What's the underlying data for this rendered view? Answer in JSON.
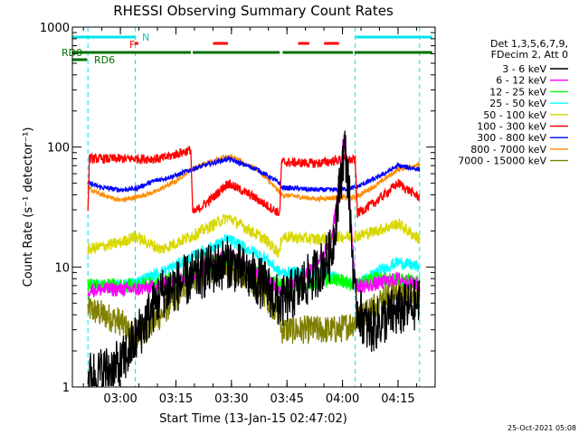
{
  "chart_data": {
    "type": "line",
    "title": "RHESSI Observing Summary Count Rates",
    "xlabel": "Start Time (13-Jan-15 02:47:02)",
    "ylabel": "Count Rate (s⁻¹ detector⁻¹)",
    "yscale": "log",
    "ylim": [
      1,
      1000
    ],
    "xlim_minutes": [
      0,
      98
    ],
    "x_ticks": [
      {
        "t": 12.97,
        "label": "03:00"
      },
      {
        "t": 27.97,
        "label": "03:15"
      },
      {
        "t": 42.97,
        "label": "03:30"
      },
      {
        "t": 57.97,
        "label": "03:45"
      },
      {
        "t": 72.97,
        "label": "04:00"
      },
      {
        "t": 87.97,
        "label": "04:15"
      }
    ],
    "y_ticks": [
      {
        "v": 1,
        "label": "1"
      },
      {
        "v": 10,
        "label": "10"
      },
      {
        "v": 100,
        "label": "100"
      },
      {
        "v": 1000,
        "label": "1000"
      }
    ],
    "legend_header": [
      "Det 1,3,5,6,7,9,",
      "FDecim 2, Att 0"
    ],
    "legend_position": "right",
    "vlines_cyan": [
      4.2,
      17.0,
      76.4,
      93.8
    ],
    "annotations": {
      "N": "N",
      "F": "F",
      "RD0": "RD0",
      "RD6": "RD6"
    },
    "flags": {
      "night": [
        [
          0,
          17.0
        ],
        [
          76.6,
          97.2
        ]
      ],
      "flare": [
        [
          16.8,
          17.8
        ],
        [
          38.0,
          42.0
        ],
        [
          61.0,
          64.0
        ],
        [
          68.0,
          72.0
        ]
      ],
      "rd0": [
        [
          0,
          32.0
        ],
        [
          32.5,
          56.0
        ],
        [
          56.8,
          75.8
        ],
        [
          76.2,
          97.2
        ]
      ],
      "rd6": [
        [
          0,
          4.0
        ]
      ]
    },
    "series": [
      {
        "name": "3 - 6 keV",
        "color": "#000000"
      },
      {
        "name": "6 - 12 keV",
        "color": "#ff00ff"
      },
      {
        "name": "12 - 25 keV",
        "color": "#00ff00"
      },
      {
        "name": "25 - 50 keV",
        "color": "#00ffff"
      },
      {
        "name": "50 - 100 keV",
        "color": "#d8d800"
      },
      {
        "name": "100 - 300 keV",
        "color": "#ff0000"
      },
      {
        "name": "300 - 800 keV",
        "color": "#0000ff"
      },
      {
        "name": "800 - 7000 keV",
        "color": "#ff8c00"
      },
      {
        "name": "7000 - 15000 keV",
        "color": "#808000"
      }
    ],
    "series_profiles": {
      "3 - 6 keV": [
        [
          4.2,
          1.2
        ],
        [
          13,
          1.5
        ],
        [
          17,
          2.5
        ],
        [
          24,
          6
        ],
        [
          32,
          8
        ],
        [
          42,
          11
        ],
        [
          52,
          7
        ],
        [
          56,
          5
        ],
        [
          56.5,
          5
        ],
        [
          62,
          7
        ],
        [
          66,
          9
        ],
        [
          70,
          13
        ],
        [
          72,
          40
        ],
        [
          73.5,
          100
        ],
        [
          74.5,
          55
        ],
        [
          76.4,
          5
        ],
        [
          80,
          3
        ],
        [
          86,
          4
        ],
        [
          93.8,
          5
        ]
      ],
      "6 - 12 keV": [
        [
          4.2,
          6.5
        ],
        [
          13,
          6.5
        ],
        [
          17,
          6.5
        ],
        [
          24,
          7
        ],
        [
          32,
          8.5
        ],
        [
          42,
          13
        ],
        [
          52,
          8
        ],
        [
          56,
          6.5
        ],
        [
          56.5,
          6.5
        ],
        [
          62,
          8
        ],
        [
          66,
          11
        ],
        [
          70,
          16
        ],
        [
          72,
          50
        ],
        [
          73.3,
          120
        ],
        [
          74.5,
          60
        ],
        [
          76.4,
          7
        ],
        [
          80,
          7
        ],
        [
          88,
          8
        ],
        [
          93.8,
          7
        ]
      ],
      "12 - 25 keV": [
        [
          4.2,
          7
        ],
        [
          13,
          7
        ],
        [
          17,
          7
        ],
        [
          24,
          7.5
        ],
        [
          32,
          8.5
        ],
        [
          42,
          12
        ],
        [
          52,
          8
        ],
        [
          56,
          7
        ],
        [
          56.5,
          7
        ],
        [
          66,
          7.5
        ],
        [
          72,
          8
        ],
        [
          76.4,
          7
        ],
        [
          82,
          8
        ],
        [
          93.8,
          7.5
        ]
      ],
      "25 - 50 keV": [
        [
          4.2,
          7
        ],
        [
          13,
          7
        ],
        [
          17,
          7.5
        ],
        [
          24,
          9
        ],
        [
          32,
          12
        ],
        [
          42,
          17
        ],
        [
          52,
          12
        ],
        [
          56,
          9
        ],
        [
          56.5,
          9
        ],
        [
          66,
          9
        ],
        [
          72,
          8
        ],
        [
          76.4,
          7
        ],
        [
          82,
          9
        ],
        [
          88,
          11
        ],
        [
          93.8,
          10
        ]
      ],
      "50 - 100 keV": [
        [
          4.2,
          14
        ],
        [
          13,
          16
        ],
        [
          17,
          18
        ],
        [
          24,
          14
        ],
        [
          32,
          18
        ],
        [
          42,
          26
        ],
        [
          52,
          17
        ],
        [
          56,
          13
        ],
        [
          56.5,
          18
        ],
        [
          66,
          17
        ],
        [
          72,
          18
        ],
        [
          76.4,
          18
        ],
        [
          82,
          20
        ],
        [
          88,
          23
        ],
        [
          93.8,
          17
        ]
      ],
      "100 - 300 keV": [
        [
          4.2,
          28
        ],
        [
          4.6,
          80
        ],
        [
          13,
          80
        ],
        [
          17,
          80
        ],
        [
          24,
          80
        ],
        [
          32,
          95
        ],
        [
          32.5,
          28
        ],
        [
          38,
          38
        ],
        [
          42,
          50
        ],
        [
          48,
          40
        ],
        [
          56,
          28
        ],
        [
          56.5,
          75
        ],
        [
          66,
          73
        ],
        [
          72,
          78
        ],
        [
          76.4,
          78
        ],
        [
          77,
          28
        ],
        [
          82,
          35
        ],
        [
          88,
          50
        ],
        [
          93.8,
          38
        ]
      ],
      "300 - 800 keV": [
        [
          4.2,
          50
        ],
        [
          8,
          46
        ],
        [
          13,
          44
        ],
        [
          17,
          45
        ],
        [
          22,
          52
        ],
        [
          28,
          58
        ],
        [
          32,
          65
        ],
        [
          42,
          80
        ],
        [
          50,
          65
        ],
        [
          56,
          50
        ],
        [
          56.5,
          46
        ],
        [
          66,
          44
        ],
        [
          72,
          44
        ],
        [
          76.4,
          46
        ],
        [
          82,
          55
        ],
        [
          88,
          70
        ],
        [
          93.8,
          65
        ]
      ],
      "800 - 7000 keV": [
        [
          4.2,
          45
        ],
        [
          8,
          40
        ],
        [
          13,
          36
        ],
        [
          17,
          38
        ],
        [
          22,
          42
        ],
        [
          28,
          52
        ],
        [
          32,
          65
        ],
        [
          42,
          85
        ],
        [
          50,
          65
        ],
        [
          56,
          42
        ],
        [
          56.5,
          40
        ],
        [
          66,
          37
        ],
        [
          72,
          38
        ],
        [
          76.4,
          38
        ],
        [
          82,
          48
        ],
        [
          88,
          65
        ],
        [
          93.8,
          72
        ]
      ],
      "7000 - 15000 keV": [
        [
          4.2,
          4.5
        ],
        [
          13,
          3.5
        ],
        [
          17,
          2.5
        ],
        [
          24,
          4
        ],
        [
          32,
          8
        ],
        [
          42,
          11
        ],
        [
          52,
          6
        ],
        [
          56,
          4
        ],
        [
          56.5,
          3
        ],
        [
          66,
          3
        ],
        [
          72,
          3
        ],
        [
          76.4,
          3.5
        ],
        [
          82,
          5
        ],
        [
          88,
          6.5
        ],
        [
          93.8,
          6
        ]
      ]
    }
  },
  "timestamp": "25-Oct-2021 05:08"
}
